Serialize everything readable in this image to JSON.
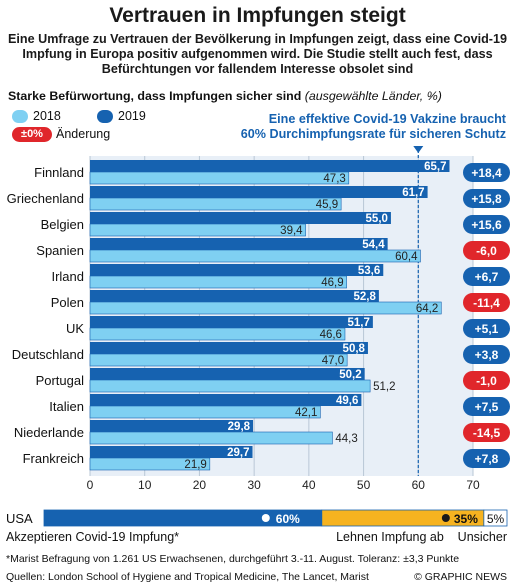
{
  "title": "Vertrauen in Impfungen steigt",
  "intro": "Eine Umfrage zu Vertrauen der Bevölkerung in Impfungen zeigt, dass eine Covid-19 Impfung in Europa positiv aufgenommen wird. Die Studie stellt auch fest, dass Befürchtungen vor fallendem Interesse obsolet sind",
  "subtitle_bold": "Starke Befürwortung, dass Impfungen sicher sind",
  "subtitle_italic": "(ausgewählte Länder, %)",
  "legend": {
    "y2018": "2018",
    "y2019": "2019",
    "change_badge": "±0%",
    "change_label": "Änderung"
  },
  "target_note": {
    "line1": "Eine effektive Covid-19 Vakzine braucht",
    "line2": "60% Durchimpfungsrate für sicheren Schutz",
    "value": 60
  },
  "chart_data": {
    "type": "bar",
    "categories": [
      "Finnland",
      "Griechenland",
      "Belgien",
      "Spanien",
      "Irland",
      "Polen",
      "UK",
      "Deutschland",
      "Portugal",
      "Italien",
      "Niederlande",
      "Frankreich"
    ],
    "series": [
      {
        "name": "2018",
        "values": [
          47.3,
          45.9,
          39.4,
          60.4,
          46.9,
          64.2,
          46.6,
          47.0,
          51.2,
          42.1,
          44.3,
          21.9
        ]
      },
      {
        "name": "2019",
        "values": [
          65.7,
          61.7,
          55.0,
          54.4,
          53.6,
          52.8,
          51.7,
          50.8,
          50.2,
          49.6,
          29.8,
          29.7
        ]
      }
    ],
    "labels_2018": [
      "47,3",
      "45,9",
      "39,4",
      "60,4",
      "46,9",
      "64,2",
      "46,6",
      "47,0",
      "51,2",
      "42,1",
      "44,3",
      "21,9"
    ],
    "labels_2019": [
      "65,7",
      "61,7",
      "55,0",
      "54,4",
      "53,6",
      "52,8",
      "51,7",
      "50,8",
      "50,2",
      "49,6",
      "29,8",
      "29,7"
    ],
    "change": [
      "+18,4",
      "+15,8",
      "+15,6",
      "-6,0",
      "+6,7",
      "-11,4",
      "+5,1",
      "+3,8",
      "-1,0",
      "+7,5",
      "-14,5",
      "+7,8"
    ],
    "change_values": [
      18.4,
      15.8,
      15.6,
      -6.0,
      6.7,
      -11.4,
      5.1,
      3.8,
      -1.0,
      7.5,
      -14.5,
      7.8
    ],
    "xlim": [
      0,
      70
    ],
    "x_ticks": [
      "0",
      "10",
      "20",
      "30",
      "40",
      "50",
      "60",
      "70"
    ],
    "grid": true,
    "colors": {
      "y2018": "#7fd0f2",
      "y2019": "#1662b0",
      "positive": "#1662b0",
      "negative": "#e0262b"
    }
  },
  "usa": {
    "label": "USA",
    "segments": [
      {
        "name": "Akzeptieren Covid-19 Impfung*",
        "value": 60,
        "label": "60%",
        "color": "#1662b0"
      },
      {
        "name": "Lehnen Impfung ab",
        "value": 35,
        "label": "35%",
        "color": "#f6b320"
      },
      {
        "name": "Unsicher",
        "value": 5,
        "label": "5%",
        "color": "#ffffff"
      }
    ],
    "footnote": "*Marist Befragung von 1.261 US Erwachsenen, durchgeführt 3.-11. August. Toleranz: ±3,3 Punkte"
  },
  "source": "Quellen: London School of Hygiene and Tropical Medicine, The Lancet, Marist",
  "copyright": "© GRAPHIC NEWS"
}
